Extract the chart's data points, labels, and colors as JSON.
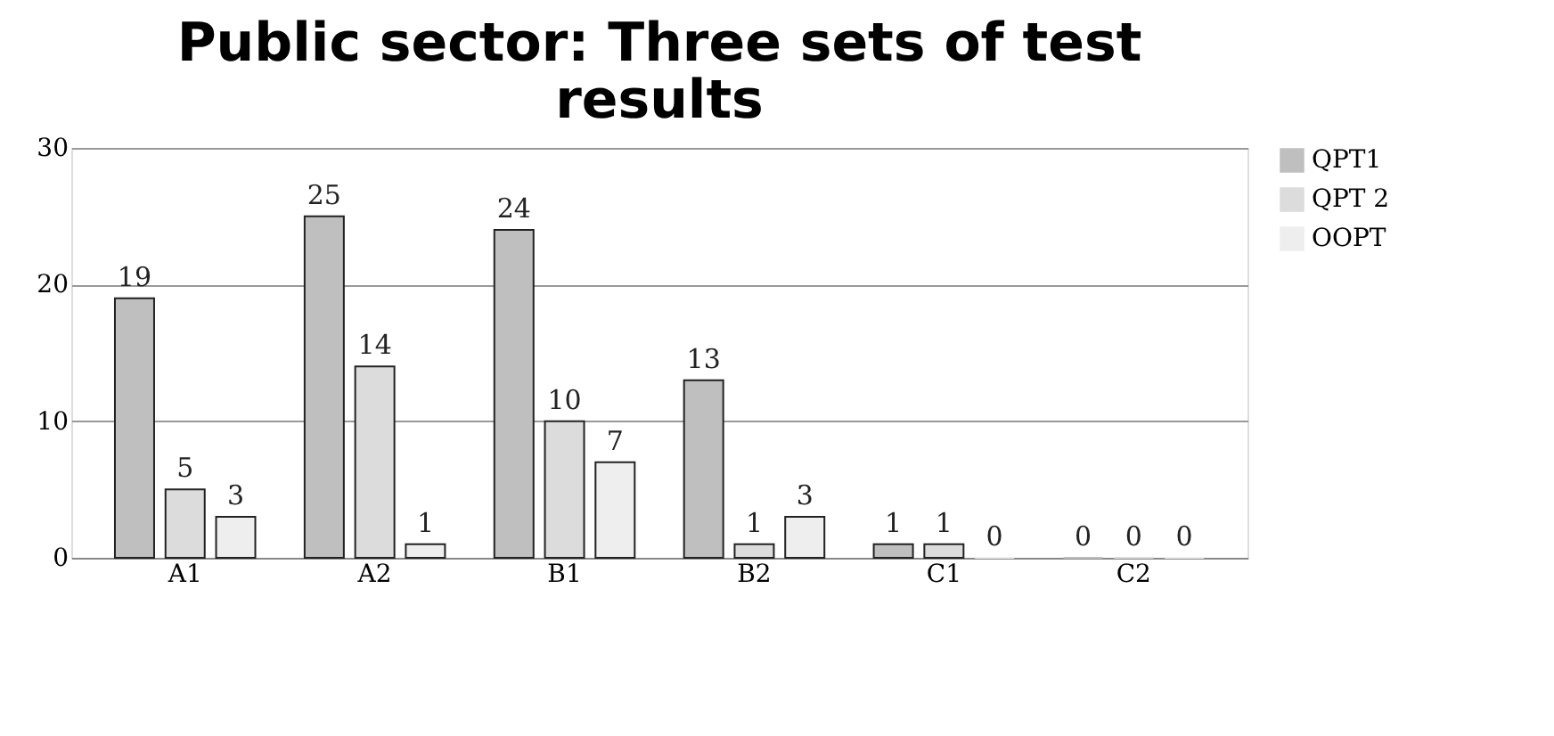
{
  "chart_data": {
    "type": "bar",
    "title": "Public sector: Three sets of test results",
    "categories": [
      "A1",
      "A2",
      "B1",
      "B2",
      "C1",
      "C2"
    ],
    "series": [
      {
        "name": "QPT1",
        "color": "#bfbfbf",
        "values": [
          19,
          25,
          24,
          13,
          1,
          0
        ]
      },
      {
        "name": "QPT 2",
        "color": "#dcdcdc",
        "values": [
          5,
          14,
          10,
          1,
          1,
          0
        ]
      },
      {
        "name": "OOPT",
        "color": "#eeeeee",
        "values": [
          3,
          1,
          7,
          3,
          0,
          0
        ]
      }
    ],
    "ylim": [
      0,
      30
    ],
    "yticks": [
      0,
      10,
      20,
      30
    ],
    "grid": "y",
    "legend": "right",
    "data_labels": true
  }
}
